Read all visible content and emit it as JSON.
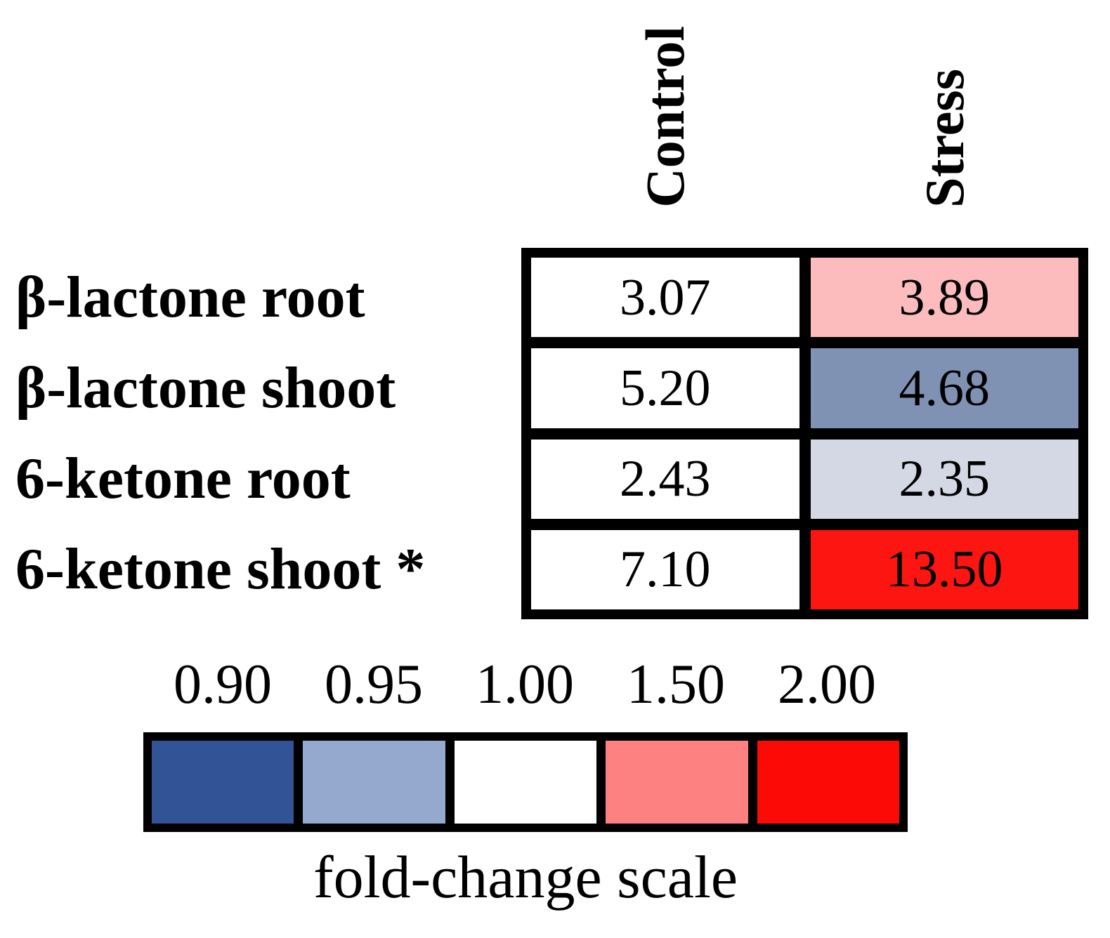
{
  "table": {
    "columns": [
      {
        "label": "Control"
      },
      {
        "label": "Stress"
      }
    ],
    "rows": [
      {
        "label": "β-lactone root",
        "cells": [
          {
            "value": "3.07",
            "bg": "#FFFFFF"
          },
          {
            "value": "3.89",
            "bg": "#FCBCBE"
          }
        ]
      },
      {
        "label": "β-lactone shoot",
        "cells": [
          {
            "value": "5.20",
            "bg": "#FFFFFF"
          },
          {
            "value": "4.68",
            "bg": "#8092B4"
          }
        ]
      },
      {
        "label": "6-ketone root",
        "cells": [
          {
            "value": "2.43",
            "bg": "#FFFFFF"
          },
          {
            "value": "2.35",
            "bg": "#D4D8E4"
          }
        ]
      },
      {
        "label": "6-ketone shoot *",
        "cells": [
          {
            "value": "7.10",
            "bg": "#FFFFFF"
          },
          {
            "value": "13.50",
            "bg": "#FC1511"
          }
        ]
      }
    ]
  },
  "legend": {
    "title": "fold-change scale",
    "stops": [
      {
        "label": "0.90",
        "color": "#325497"
      },
      {
        "label": "0.95",
        "color": "#94A9CD"
      },
      {
        "label": "1.00",
        "color": "#FFFFFF"
      },
      {
        "label": "1.50",
        "color": "#FD8181"
      },
      {
        "label": "2.00",
        "color": "#FC0B06"
      }
    ]
  },
  "chart_data": {
    "type": "heatmap",
    "title": "",
    "columns": [
      "Control",
      "Stress"
    ],
    "rows": [
      "β-lactone root",
      "β-lactone shoot",
      "6-ketone root",
      "6-ketone shoot *"
    ],
    "values": [
      [
        3.07,
        3.89
      ],
      [
        5.2,
        4.68
      ],
      [
        2.43,
        2.35
      ],
      [
        7.1,
        13.5
      ]
    ],
    "cell_colors": [
      [
        "#FFFFFF",
        "#FCBCBE"
      ],
      [
        "#FFFFFF",
        "#8092B4"
      ],
      [
        "#FFFFFF",
        "#D4D8E4"
      ],
      [
        "#FFFFFF",
        "#FC1511"
      ]
    ],
    "colorbar": {
      "title": "fold-change scale",
      "ticks": [
        "0.90",
        "0.95",
        "1.00",
        "1.50",
        "2.00"
      ],
      "colors": [
        "#325497",
        "#94A9CD",
        "#FFFFFF",
        "#FD8181",
        "#FC0B06"
      ],
      "position": "bottom"
    },
    "notes": "asterisk on row label marks significance; cell background encodes fold-change of Stress vs Control"
  }
}
